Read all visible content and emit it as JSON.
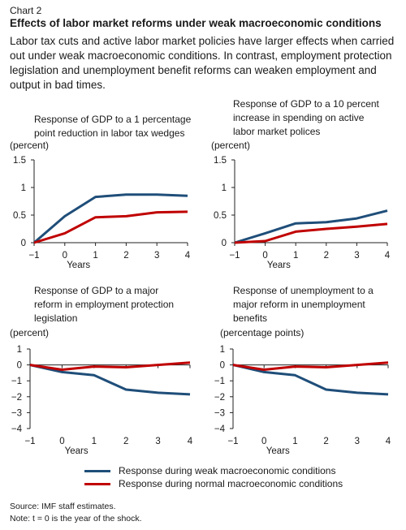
{
  "header": {
    "chart_number": "Chart 2",
    "title": "Effects of labor market reforms under weak macroeconomic conditions",
    "description": "Labor tax cuts and active labor market policies have larger effects when carried out under weak macroeconomic conditions. In contrast, employment protection legislation and unemployment benefit reforms can weaken employment and output in bad times."
  },
  "colors": {
    "weak": "#1f4e79",
    "normal": "#c00000",
    "axis": "#222222"
  },
  "legend": [
    {
      "label": "Response during weak macroeconomic conditions",
      "color": "#1f4e79"
    },
    {
      "label": "Response during normal macroeconomic conditions",
      "color": "#c00000"
    }
  ],
  "footer": {
    "source": "Source: IMF staff estimates.",
    "note": "Note: t = 0 is the year of the shock."
  },
  "chart_data": [
    {
      "type": "line",
      "title_lines": [
        "Response of GDP to a 1 percentage",
        "point reduction in labor tax wedges"
      ],
      "unit": "(percent)",
      "xlabel": "Years",
      "x": [
        -1,
        0,
        1,
        2,
        3,
        4
      ],
      "xticks": [
        "−1",
        "0",
        "1",
        "2",
        "3",
        "4"
      ],
      "ylim": [
        0,
        1.5
      ],
      "yticks": [
        0,
        0.5,
        1,
        1.5
      ],
      "ytick_labels": [
        "0",
        "0.5",
        "1",
        "1.5"
      ],
      "series": [
        {
          "key": "weak",
          "values": [
            0,
            0.48,
            0.83,
            0.87,
            0.87,
            0.85
          ]
        },
        {
          "key": "normal",
          "values": [
            0,
            0.17,
            0.46,
            0.48,
            0.55,
            0.56
          ]
        }
      ]
    },
    {
      "type": "line",
      "title_lines": [
        "Response of GDP to a 10 percent",
        "increase in spending on active",
        "labor market polices"
      ],
      "unit": "(percent)",
      "xlabel": "Years",
      "x": [
        -1,
        0,
        1,
        2,
        3,
        4
      ],
      "xticks": [
        "−1",
        "0",
        "1",
        "2",
        "3",
        "4"
      ],
      "ylim": [
        0,
        1.5
      ],
      "yticks": [
        0,
        0.5,
        1,
        1.5
      ],
      "ytick_labels": [
        "0",
        "0.5",
        "1",
        "1.5"
      ],
      "series": [
        {
          "key": "weak",
          "values": [
            0,
            0.17,
            0.35,
            0.37,
            0.44,
            0.58
          ]
        },
        {
          "key": "normal",
          "values": [
            0,
            0.03,
            0.2,
            0.25,
            0.29,
            0.34
          ]
        }
      ]
    },
    {
      "type": "line",
      "title_lines": [
        "Response of GDP to a major",
        "reform in employment protection",
        "legislation"
      ],
      "unit": "(percent)",
      "xlabel": "Years",
      "x": [
        -1,
        0,
        1,
        2,
        3,
        4
      ],
      "xticks": [
        "−1",
        "0",
        "1",
        "2",
        "3",
        "4"
      ],
      "ylim": [
        -4,
        1
      ],
      "yticks": [
        -4,
        -3,
        -2,
        -1,
        0,
        1
      ],
      "ytick_labels": [
        "−4",
        "−3",
        "−2",
        "−1",
        "0",
        "1"
      ],
      "series": [
        {
          "key": "weak",
          "values": [
            0,
            -0.45,
            -0.65,
            -1.55,
            -1.75,
            -1.85
          ]
        },
        {
          "key": "normal",
          "values": [
            0,
            -0.3,
            -0.1,
            -0.15,
            0,
            0.15
          ]
        }
      ]
    },
    {
      "type": "line",
      "title_lines": [
        "Response of unemployment to a",
        "major reform in unemployment",
        "benefits"
      ],
      "unit": "(percentage points)",
      "xlabel": "Years",
      "x": [
        -1,
        0,
        1,
        2,
        3,
        4
      ],
      "xticks": [
        "−1",
        "0",
        "1",
        "2",
        "3",
        "4"
      ],
      "ylim": [
        -4,
        1
      ],
      "yticks": [
        -4,
        -3,
        -2,
        -1,
        0,
        1
      ],
      "ytick_labels": [
        "−4",
        "−3",
        "−2",
        "−1",
        "0",
        "1"
      ],
      "series": [
        {
          "key": "weak",
          "values": [
            0,
            -0.45,
            -0.65,
            -1.55,
            -1.75,
            -1.85
          ]
        },
        {
          "key": "normal",
          "values": [
            0,
            -0.3,
            -0.1,
            -0.15,
            0,
            0.15
          ]
        }
      ]
    }
  ]
}
